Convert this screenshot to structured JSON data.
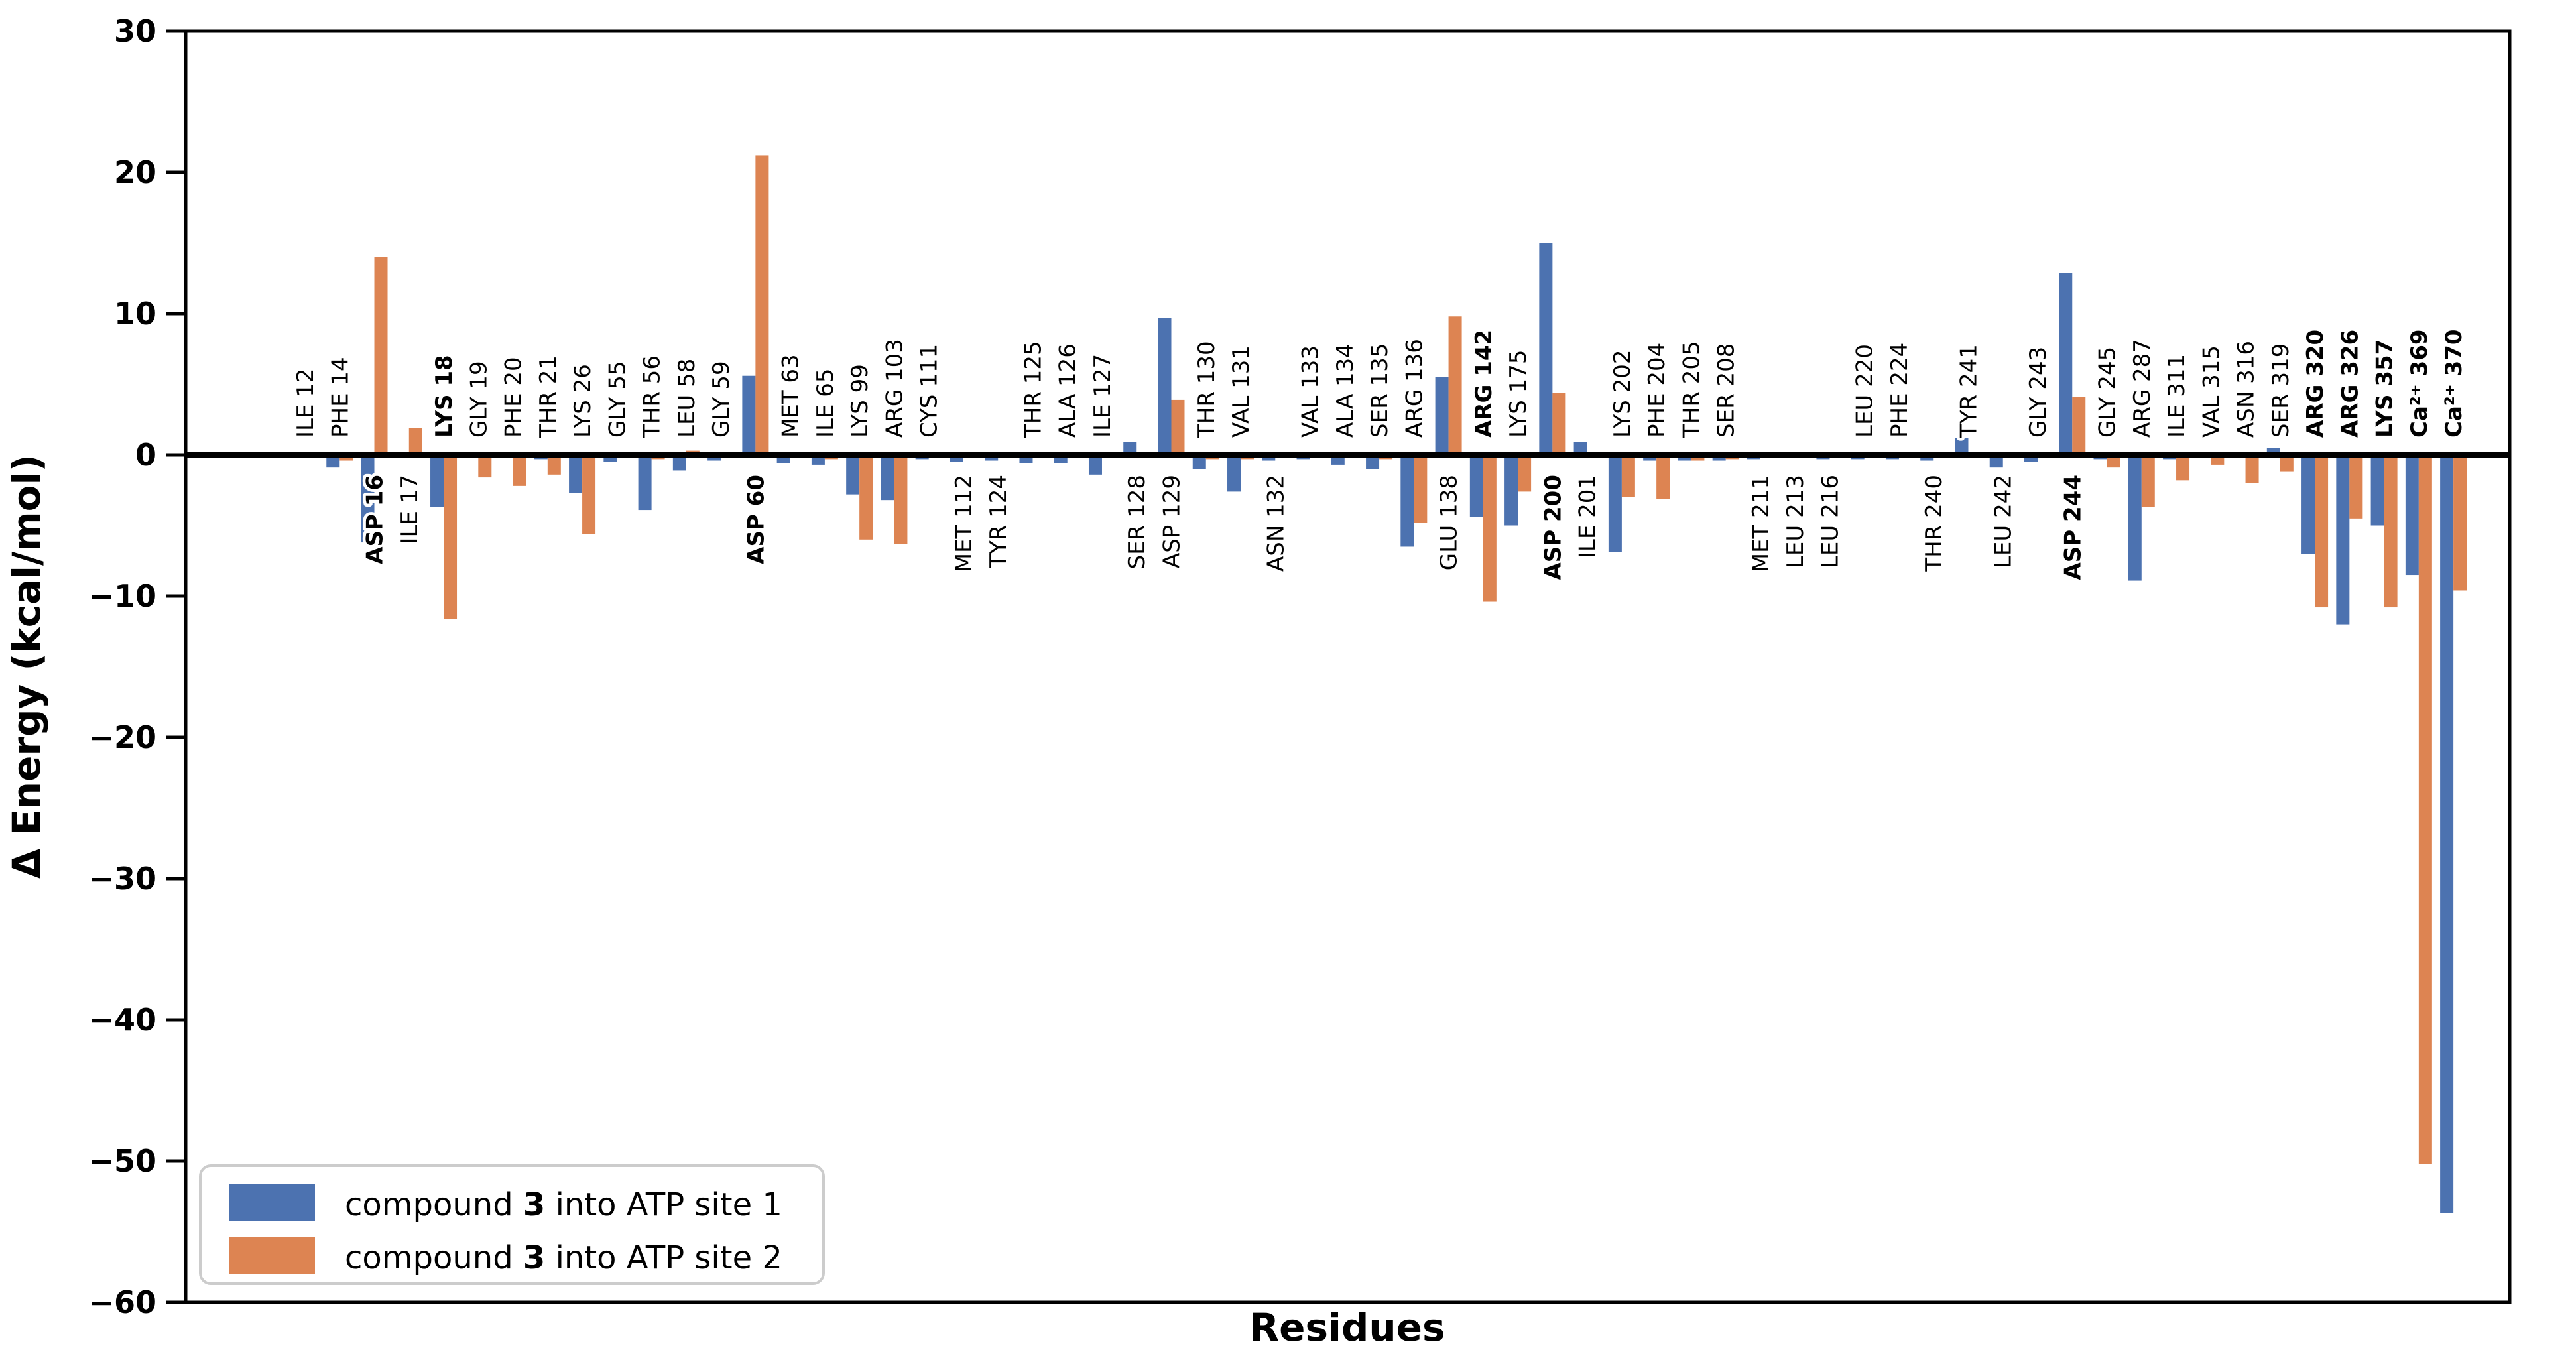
{
  "chart_data": {
    "type": "bar",
    "title": "",
    "xlabel": "Residues",
    "ylabel": "Δ Energy (kcal/mol)",
    "ylim": [
      -60,
      30
    ],
    "yticks": [
      30,
      20,
      10,
      0,
      -10,
      -20,
      -30,
      -40,
      -50,
      -60
    ],
    "grid": false,
    "legend_position": "lower left",
    "frame": true,
    "categories": [
      "ILE 12",
      "PHE 14",
      "ASP 16",
      "ILE 17",
      "LYS 18",
      "GLY 19",
      "PHE 20",
      "THR 21",
      "LYS 26",
      "GLY 55",
      "THR 56",
      "LEU 58",
      "GLY 59",
      "ASP 60",
      "MET 63",
      "ILE 65",
      "LYS 99",
      "ARG 103",
      "CYS 111",
      "MET 112",
      "TYR 124",
      "THR 125",
      "ALA 126",
      "ILE 127",
      "SER 128",
      "ASP 129",
      "THR 130",
      "VAL 131",
      "ASN 132",
      "VAL 133",
      "ALA 134",
      "SER 135",
      "ARG 136",
      "GLU 138",
      "ARG 142",
      "LYS 175",
      "ASP 200",
      "ILE 201",
      "LYS 202",
      "PHE 204",
      "THR 205",
      "SER 208",
      "MET 211",
      "LEU 213",
      "LEU 216",
      "LEU 220",
      "PHE 224",
      "THR 240",
      "TYR 241",
      "LEU 242",
      "GLY 243",
      "ASP 244",
      "GLY 245",
      "ARG 287",
      "ILE 311",
      "VAL 315",
      "ASN 316",
      "SER 319",
      "ARG 320",
      "ARG 326",
      "LYS 357",
      "Ca²⁺ 369",
      "Ca²⁺ 370"
    ],
    "bold_categories": [
      2,
      4,
      13,
      34,
      36,
      51,
      58,
      59,
      60,
      61,
      62
    ],
    "label_below_axis": [
      2,
      3,
      13,
      19,
      20,
      24,
      25,
      28,
      33,
      36,
      37,
      42,
      43,
      44,
      47,
      49,
      51
    ],
    "series": [
      {
        "name": "compound 3 into ATP site 1",
        "color": "#4C72B0",
        "values": [
          -0.2,
          -0.9,
          -6.2,
          -0.2,
          -3.7,
          -0.2,
          -0.2,
          -0.3,
          -2.7,
          -0.5,
          -3.9,
          -1.1,
          -0.4,
          5.6,
          -0.6,
          -0.7,
          -2.8,
          -3.2,
          -0.3,
          -0.5,
          -0.4,
          -0.6,
          -0.6,
          -1.4,
          0.9,
          9.7,
          -1.0,
          -2.6,
          -0.4,
          -0.3,
          -0.7,
          -1.0,
          -6.5,
          5.5,
          -4.4,
          -5.0,
          15.0,
          0.9,
          -6.9,
          -0.4,
          -0.4,
          -0.4,
          -0.3,
          -0.2,
          -0.3,
          -0.3,
          -0.3,
          -0.4,
          1.2,
          -0.9,
          -0.5,
          12.9,
          -0.3,
          -8.9,
          -0.3,
          0.2,
          -0.2,
          0.5,
          -7.0,
          -12.0,
          -5.0,
          -8.5,
          -53.7
        ]
      },
      {
        "name": "compound 3 into ATP site 2",
        "color": "#DD8452",
        "values": [
          -0.1,
          -0.4,
          14.0,
          1.9,
          -11.6,
          -1.6,
          -2.2,
          -1.4,
          -5.6,
          -0.2,
          -0.3,
          0.3,
          0.2,
          21.2,
          0.2,
          -0.3,
          -6.0,
          -6.3,
          -0.2,
          -0.2,
          -0.1,
          -0.2,
          -0.1,
          -0.2,
          -0.1,
          3.9,
          -0.3,
          -0.3,
          -0.1,
          -0.1,
          -0.2,
          -0.3,
          -4.8,
          9.8,
          -10.4,
          -2.6,
          4.4,
          -0.1,
          -3.0,
          -3.1,
          -0.4,
          -0.3,
          -0.2,
          -0.1,
          -0.2,
          -0.1,
          -0.1,
          -0.1,
          -0.1,
          -0.2,
          -0.1,
          4.1,
          -0.9,
          -3.7,
          -1.8,
          -0.7,
          -2.0,
          -1.2,
          -10.8,
          -4.5,
          -10.8,
          -50.2,
          -9.6
        ]
      }
    ]
  },
  "axes": {
    "ylabel": "Δ Energy (kcal/mol)",
    "xlabel": "Residues"
  },
  "legend": {
    "items": [
      {
        "prefix": "compound ",
        "emph": "3",
        "suffix": " into ATP site 1",
        "color": "#4C72B0"
      },
      {
        "prefix": "compound ",
        "emph": "3",
        "suffix": " into ATP site 2",
        "color": "#DD8452"
      }
    ]
  },
  "colors": {
    "site1": "#4C72B0",
    "site2": "#DD8452",
    "axis": "#000000",
    "legend_border": "#cccccc",
    "background": "#ffffff"
  }
}
